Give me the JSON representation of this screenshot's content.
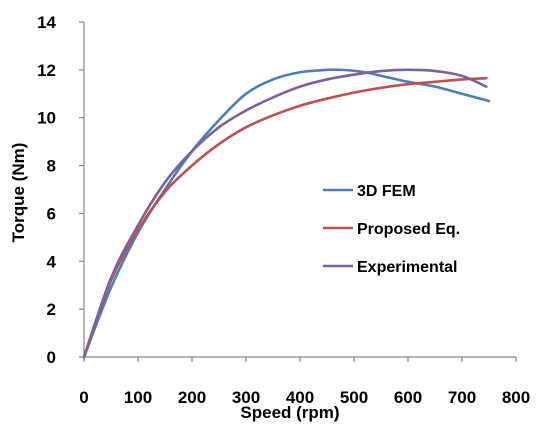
{
  "chart_data": {
    "type": "line",
    "xlabel": "Speed (rpm)",
    "ylabel": "Torque (Nm)",
    "xlim": [
      0,
      800
    ],
    "ylim": [
      0,
      14
    ],
    "xticks": [
      0,
      100,
      200,
      300,
      400,
      500,
      600,
      700,
      800
    ],
    "yticks": [
      0,
      2,
      4,
      6,
      8,
      10,
      12,
      14
    ],
    "grid": false,
    "legend_position": "center-right",
    "series": [
      {
        "name": "3D FEM",
        "color": "#4a7ebb",
        "x": [
          0,
          50,
          100,
          150,
          200,
          250,
          300,
          350,
          400,
          450,
          480,
          520,
          560,
          600,
          650,
          700,
          750
        ],
        "y": [
          0,
          2.9,
          5.2,
          7.0,
          8.6,
          9.9,
          11.0,
          11.6,
          11.9,
          12.0,
          12.0,
          11.9,
          11.7,
          11.5,
          11.3,
          11.0,
          10.7
        ]
      },
      {
        "name": " Proposed Eq.",
        "color": "#c0504d",
        "x": [
          0,
          50,
          100,
          150,
          200,
          250,
          300,
          350,
          400,
          450,
          500,
          550,
          600,
          650,
          700,
          745
        ],
        "y": [
          0,
          3.2,
          5.3,
          6.9,
          8.0,
          8.9,
          9.6,
          10.1,
          10.5,
          10.8,
          11.05,
          11.25,
          11.4,
          11.5,
          11.6,
          11.65
        ]
      },
      {
        "name": "Experimental",
        "color": "#7d60a0",
        "x": [
          0,
          50,
          100,
          150,
          200,
          250,
          300,
          350,
          400,
          450,
          500,
          550,
          600,
          650,
          700,
          745
        ],
        "y": [
          0,
          3.3,
          5.5,
          7.3,
          8.6,
          9.6,
          10.3,
          10.85,
          11.3,
          11.6,
          11.8,
          11.95,
          12.0,
          11.95,
          11.75,
          11.3
        ]
      }
    ]
  }
}
